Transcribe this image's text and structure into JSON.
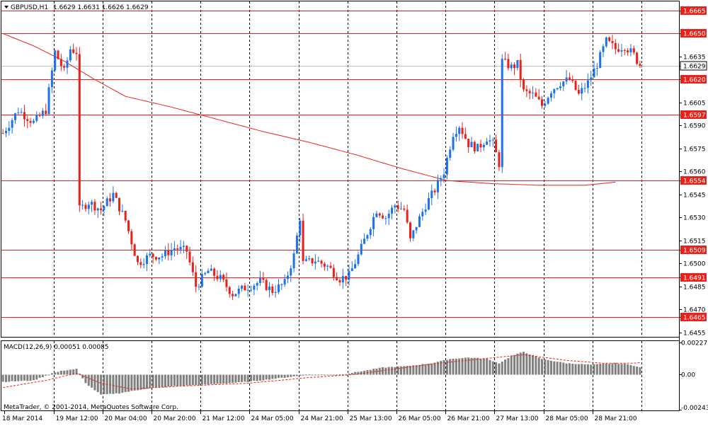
{
  "chart_data": [
    {
      "type": "candlestick",
      "header": {
        "symbol": "GBPUSD,H1",
        "ohlc": "1.6629 1.6631 1.6626 1.6629"
      },
      "y_ticks": [
        "1.6665",
        "1.6650",
        "1.6635",
        "1.6629",
        "1.6620",
        "1.6605",
        "1.6597",
        "1.6590",
        "1.6575",
        "1.6560",
        "1.6554",
        "1.6545",
        "1.6530",
        "1.6515",
        "1.6509",
        "1.6500",
        "1.6491",
        "1.6485",
        "1.6470",
        "1.6465",
        "1.6455"
      ],
      "ylim": [
        1.6452,
        1.6671
      ],
      "x_labels": [
        "18 Mar 2014",
        "19 Mar 12:00",
        "20 Mar 04:00",
        "20 Mar 20:00",
        "21 Mar 12:00",
        "24 Mar 05:00",
        "24 Mar 21:00",
        "25 Mar 13:00",
        "26 Mar 05:00",
        "26 Mar 21:00",
        "27 Mar 13:00",
        "28 Mar 05:00",
        "28 Mar 21:00"
      ],
      "horizontal_levels": [
        1.6665,
        1.665,
        1.662,
        1.6597,
        1.6554,
        1.6509,
        1.6491,
        1.6465
      ],
      "current_price": 1.6629,
      "colors": {
        "bullish": "#1e73e8",
        "bearish": "#e8221b",
        "level_line": "#e8221b",
        "ma_line": "#e8221b",
        "grid": "#000000"
      },
      "ma_line": [
        {
          "bar": 0,
          "value": 1.665
        },
        {
          "bar": 10,
          "value": 1.6642
        },
        {
          "bar": 20,
          "value": 1.6632
        },
        {
          "bar": 30,
          "value": 1.662
        },
        {
          "bar": 40,
          "value": 1.6609
        },
        {
          "bar": 55,
          "value": 1.6602
        },
        {
          "bar": 70,
          "value": 1.6594
        },
        {
          "bar": 85,
          "value": 1.6586
        },
        {
          "bar": 100,
          "value": 1.6579
        },
        {
          "bar": 115,
          "value": 1.6571
        },
        {
          "bar": 130,
          "value": 1.6562
        },
        {
          "bar": 145,
          "value": 1.6554
        },
        {
          "bar": 160,
          "value": 1.6552
        },
        {
          "bar": 175,
          "value": 1.6551
        },
        {
          "bar": 190,
          "value": 1.6551
        },
        {
          "bar": 200,
          "value": 1.6553
        }
      ],
      "price_path": [
        {
          "bar": 0,
          "value": 1.6585
        },
        {
          "bar": 5,
          "value": 1.66
        },
        {
          "bar": 10,
          "value": 1.6592
        },
        {
          "bar": 14,
          "value": 1.66
        },
        {
          "bar": 17,
          "value": 1.6638
        },
        {
          "bar": 20,
          "value": 1.6625
        },
        {
          "bar": 22,
          "value": 1.664
        },
        {
          "bar": 24,
          "value": 1.6638
        },
        {
          "bar": 25,
          "value": 1.6535
        },
        {
          "bar": 28,
          "value": 1.654
        },
        {
          "bar": 32,
          "value": 1.6535
        },
        {
          "bar": 36,
          "value": 1.6545
        },
        {
          "bar": 40,
          "value": 1.6528
        },
        {
          "bar": 44,
          "value": 1.65
        },
        {
          "bar": 48,
          "value": 1.6505
        },
        {
          "bar": 52,
          "value": 1.6505
        },
        {
          "bar": 56,
          "value": 1.651
        },
        {
          "bar": 60,
          "value": 1.6508
        },
        {
          "bar": 63,
          "value": 1.6485
        },
        {
          "bar": 67,
          "value": 1.6495
        },
        {
          "bar": 71,
          "value": 1.649
        },
        {
          "bar": 75,
          "value": 1.648
        },
        {
          "bar": 79,
          "value": 1.6484
        },
        {
          "bar": 84,
          "value": 1.6488
        },
        {
          "bar": 88,
          "value": 1.6482
        },
        {
          "bar": 92,
          "value": 1.6487
        },
        {
          "bar": 95,
          "value": 1.6505
        },
        {
          "bar": 97,
          "value": 1.653
        },
        {
          "bar": 98,
          "value": 1.65
        },
        {
          "bar": 102,
          "value": 1.6502
        },
        {
          "bar": 106,
          "value": 1.6498
        },
        {
          "bar": 110,
          "value": 1.649
        },
        {
          "bar": 113,
          "value": 1.6492
        },
        {
          "bar": 116,
          "value": 1.6505
        },
        {
          "bar": 119,
          "value": 1.652
        },
        {
          "bar": 122,
          "value": 1.6535
        },
        {
          "bar": 125,
          "value": 1.653
        },
        {
          "bar": 128,
          "value": 1.6538
        },
        {
          "bar": 131,
          "value": 1.6535
        },
        {
          "bar": 133,
          "value": 1.6515
        },
        {
          "bar": 135,
          "value": 1.6525
        },
        {
          "bar": 138,
          "value": 1.6538
        },
        {
          "bar": 141,
          "value": 1.6548
        },
        {
          "bar": 144,
          "value": 1.656
        },
        {
          "bar": 147,
          "value": 1.6585
        },
        {
          "bar": 149,
          "value": 1.659
        },
        {
          "bar": 152,
          "value": 1.6578
        },
        {
          "bar": 155,
          "value": 1.6575
        },
        {
          "bar": 158,
          "value": 1.6582
        },
        {
          "bar": 160,
          "value": 1.6578
        },
        {
          "bar": 162,
          "value": 1.6565
        },
        {
          "bar": 163,
          "value": 1.6632
        },
        {
          "bar": 166,
          "value": 1.6628
        },
        {
          "bar": 168,
          "value": 1.663
        },
        {
          "bar": 170,
          "value": 1.6612
        },
        {
          "bar": 173,
          "value": 1.661
        },
        {
          "bar": 176,
          "value": 1.6603
        },
        {
          "bar": 179,
          "value": 1.6613
        },
        {
          "bar": 182,
          "value": 1.6618
        },
        {
          "bar": 185,
          "value": 1.662
        },
        {
          "bar": 188,
          "value": 1.661
        },
        {
          "bar": 191,
          "value": 1.6618
        },
        {
          "bar": 194,
          "value": 1.663
        },
        {
          "bar": 197,
          "value": 1.6645
        },
        {
          "bar": 200,
          "value": 1.664
        },
        {
          "bar": 203,
          "value": 1.6642
        },
        {
          "bar": 206,
          "value": 1.6636
        },
        {
          "bar": 208,
          "value": 1.6629
        }
      ],
      "total_bars": 209
    },
    {
      "type": "bar",
      "title": "MACD(12,26,9) 0.00051 0.00085",
      "y_ticks": [
        "0.00227",
        "0.00",
        "-0.00243"
      ],
      "ylim": [
        -0.0025,
        0.00235
      ],
      "colors": {
        "histogram": "#808080",
        "signal": "#e8221b"
      },
      "histogram_path": [
        {
          "bar": 0,
          "value": -0.0005
        },
        {
          "bar": 10,
          "value": -0.0004
        },
        {
          "bar": 16,
          "value": 0.0001
        },
        {
          "bar": 20,
          "value": 0.0003
        },
        {
          "bar": 24,
          "value": 0.0004
        },
        {
          "bar": 27,
          "value": -0.0006
        },
        {
          "bar": 32,
          "value": -0.0014
        },
        {
          "bar": 38,
          "value": -0.0013
        },
        {
          "bar": 46,
          "value": -0.001
        },
        {
          "bar": 56,
          "value": -0.0008
        },
        {
          "bar": 66,
          "value": -0.0007
        },
        {
          "bar": 80,
          "value": -0.0005
        },
        {
          "bar": 92,
          "value": -0.0002
        },
        {
          "bar": 100,
          "value": 0.0
        },
        {
          "bar": 110,
          "value": 0.0
        },
        {
          "bar": 116,
          "value": 0.0002
        },
        {
          "bar": 124,
          "value": 0.0005
        },
        {
          "bar": 132,
          "value": 0.0006
        },
        {
          "bar": 140,
          "value": 0.0008
        },
        {
          "bar": 146,
          "value": 0.0011
        },
        {
          "bar": 152,
          "value": 0.0012
        },
        {
          "bar": 158,
          "value": 0.0011
        },
        {
          "bar": 162,
          "value": 0.0008
        },
        {
          "bar": 166,
          "value": 0.0013
        },
        {
          "bar": 170,
          "value": 0.0016
        },
        {
          "bar": 176,
          "value": 0.0011
        },
        {
          "bar": 184,
          "value": 0.0008
        },
        {
          "bar": 192,
          "value": 0.0007
        },
        {
          "bar": 200,
          "value": 0.0008
        },
        {
          "bar": 205,
          "value": 0.0007
        },
        {
          "bar": 208,
          "value": 0.0005
        }
      ],
      "signal_path": [
        {
          "bar": 0,
          "value": -0.0009
        },
        {
          "bar": 14,
          "value": -0.0004
        },
        {
          "bar": 24,
          "value": 0.0001
        },
        {
          "bar": 32,
          "value": -0.0006
        },
        {
          "bar": 42,
          "value": -0.001
        },
        {
          "bar": 58,
          "value": -0.0008
        },
        {
          "bar": 80,
          "value": -0.0006
        },
        {
          "bar": 100,
          "value": -0.0002
        },
        {
          "bar": 114,
          "value": 0.0
        },
        {
          "bar": 128,
          "value": 0.0004
        },
        {
          "bar": 142,
          "value": 0.0008
        },
        {
          "bar": 156,
          "value": 0.0011
        },
        {
          "bar": 170,
          "value": 0.0014
        },
        {
          "bar": 184,
          "value": 0.001
        },
        {
          "bar": 196,
          "value": 0.0008
        },
        {
          "bar": 206,
          "value": 0.0008
        },
        {
          "bar": 208,
          "value": 0.00085
        }
      ]
    }
  ],
  "watermark": "MetaTrader, © 2001-2014, MetaQuotes Software Corp."
}
